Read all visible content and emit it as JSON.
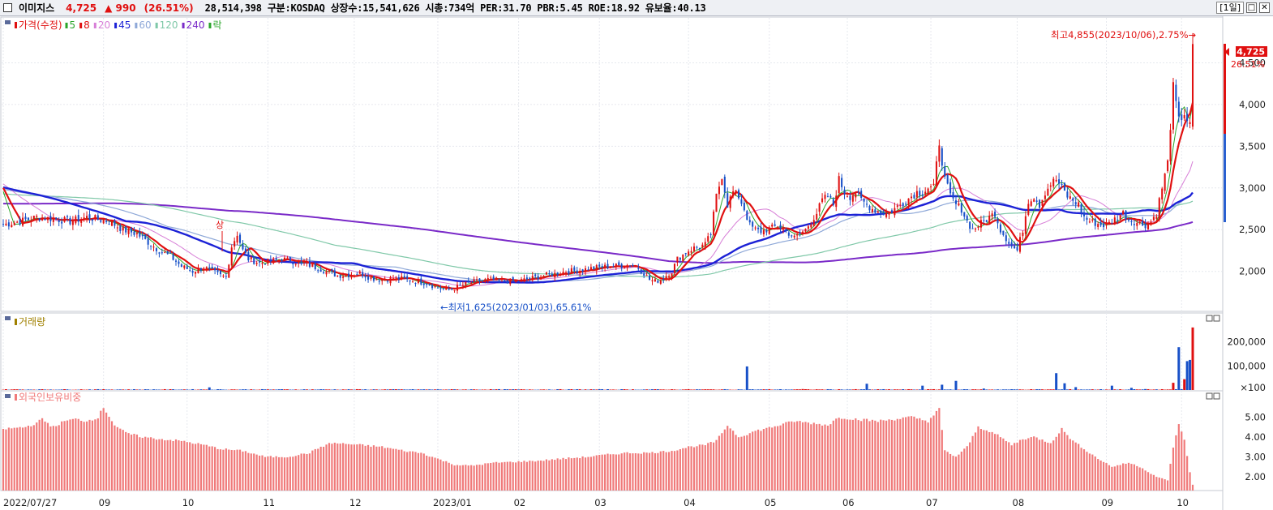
{
  "header": {
    "name": "이미지스",
    "price": "4,725",
    "change": "▲ 990",
    "change_pct": "(26.51%)",
    "info": "28,514,398  구분:KOSDAQ 상장수:15,541,626 시총:734억 PER:31.70 PBR:5.45 ROE:18.92 유보율:40.13",
    "period": "[1일]",
    "min_btn": "□",
    "close_btn": "✕"
  },
  "colors": {
    "up": "#e01010",
    "down": "#1750c8",
    "ma5": "#2aa52a",
    "ma8": "#e01010",
    "ma20": "#d77fd7",
    "ma45": "#1c22d6",
    "ma60": "#8ea8d8",
    "ma120": "#7fc8a8",
    "ma240": "#7a2ac8",
    "foreign": "#f07a7a",
    "volume_label": "#a08000"
  },
  "legend": {
    "price_label": "가격(수정)",
    "items": [
      {
        "label": "5",
        "color": "#2aa52a"
      },
      {
        "label": "8",
        "color": "#e01010"
      },
      {
        "label": "20",
        "color": "#d77fd7"
      },
      {
        "label": "45",
        "color": "#1c22d6"
      },
      {
        "label": "60",
        "color": "#8ea8d8"
      },
      {
        "label": "120",
        "color": "#7fc8a8"
      },
      {
        "label": "240",
        "color": "#7a2ac8"
      },
      {
        "label": "락",
        "color": "#2aa52a"
      }
    ],
    "volume_label": "거래량",
    "foreign_label": "외국인보유비중"
  },
  "annotations": {
    "high": "최고4,855(2023/10/06),2.75%→",
    "low": "←최저1,625(2023/01/03),65.61%",
    "upper_limit": "상",
    "last_price": "4,725",
    "last_pct": "26.51%"
  },
  "chart_data": [
    {
      "type": "candlestick",
      "name": "price",
      "x_range": [
        "2022/07/27",
        "2023/10/06"
      ],
      "y_ticks": [
        2000,
        2500,
        3000,
        3500,
        4000,
        4500
      ],
      "y_tick_labels": [
        "2,000",
        "2,500",
        "3,000",
        "3,500",
        "4,000",
        "4,500"
      ],
      "ylim": [
        1550,
        5000
      ],
      "close_path": [
        [
          0,
          2560
        ],
        [
          6,
          2600
        ],
        [
          12,
          2650
        ],
        [
          18,
          2630
        ],
        [
          24,
          2600
        ],
        [
          30,
          2650
        ],
        [
          38,
          2600
        ],
        [
          43,
          2500
        ],
        [
          48,
          2450
        ],
        [
          52,
          2350
        ],
        [
          56,
          2250
        ],
        [
          60,
          2180
        ],
        [
          64,
          2060
        ],
        [
          68,
          2000
        ],
        [
          72,
          2050
        ],
        [
          75,
          2000
        ],
        [
          78,
          1950
        ],
        [
          80,
          1930
        ],
        [
          82,
          2300
        ],
        [
          84,
          2450
        ],
        [
          86,
          2250
        ],
        [
          88,
          2150
        ],
        [
          92,
          2100
        ],
        [
          96,
          2120
        ],
        [
          100,
          2150
        ],
        [
          104,
          2120
        ],
        [
          108,
          2100
        ],
        [
          112,
          2050
        ],
        [
          116,
          2000
        ],
        [
          120,
          1950
        ],
        [
          124,
          1960
        ],
        [
          128,
          1980
        ],
        [
          132,
          1920
        ],
        [
          136,
          1900
        ],
        [
          140,
          1920
        ],
        [
          144,
          1910
        ],
        [
          148,
          1880
        ],
        [
          152,
          1860
        ],
        [
          156,
          1800
        ],
        [
          160,
          1780
        ],
        [
          162,
          1800
        ],
        [
          166,
          1850
        ],
        [
          170,
          1880
        ],
        [
          174,
          1900
        ],
        [
          178,
          1890
        ],
        [
          182,
          1880
        ],
        [
          186,
          1890
        ],
        [
          190,
          1920
        ],
        [
          194,
          1950
        ],
        [
          198,
          1970
        ],
        [
          202,
          2000
        ],
        [
          206,
          2010
        ],
        [
          210,
          2030
        ],
        [
          214,
          2050
        ],
        [
          218,
          2060
        ],
        [
          222,
          2070
        ],
        [
          226,
          2080
        ],
        [
          228,
          2040
        ],
        [
          230,
          1980
        ],
        [
          232,
          1900
        ],
        [
          234,
          1880
        ],
        [
          236,
          1900
        ],
        [
          238,
          1950
        ],
        [
          240,
          2000
        ],
        [
          242,
          2150
        ],
        [
          244,
          2200
        ],
        [
          246,
          2250
        ],
        [
          248,
          2280
        ],
        [
          250,
          2300
        ],
        [
          252,
          2320
        ],
        [
          254,
          2450
        ],
        [
          256,
          2900
        ],
        [
          258,
          3150
        ],
        [
          260,
          2800
        ],
        [
          262,
          2950
        ],
        [
          264,
          2900
        ],
        [
          266,
          2750
        ],
        [
          268,
          2550
        ],
        [
          270,
          2500
        ],
        [
          272,
          2480
        ],
        [
          274,
          2500
        ],
        [
          276,
          2520
        ],
        [
          278,
          2550
        ],
        [
          280,
          2500
        ],
        [
          282,
          2460
        ],
        [
          284,
          2400
        ],
        [
          286,
          2450
        ],
        [
          288,
          2500
        ],
        [
          290,
          2600
        ],
        [
          292,
          2700
        ],
        [
          294,
          2850
        ],
        [
          296,
          2900
        ],
        [
          298,
          2800
        ],
        [
          300,
          3100
        ],
        [
          302,
          2950
        ],
        [
          304,
          2900
        ],
        [
          306,
          2950
        ],
        [
          308,
          2850
        ],
        [
          310,
          2800
        ],
        [
          312,
          2750
        ],
        [
          314,
          2720
        ],
        [
          316,
          2700
        ],
        [
          318,
          2700
        ],
        [
          320,
          2750
        ],
        [
          322,
          2800
        ],
        [
          324,
          2850
        ],
        [
          326,
          2900
        ],
        [
          328,
          2950
        ],
        [
          330,
          2950
        ],
        [
          332,
          3000
        ],
        [
          334,
          3000
        ],
        [
          336,
          3550
        ],
        [
          338,
          3100
        ],
        [
          340,
          2900
        ],
        [
          342,
          2800
        ],
        [
          344,
          2750
        ],
        [
          346,
          2600
        ],
        [
          348,
          2500
        ],
        [
          350,
          2550
        ],
        [
          352,
          2600
        ],
        [
          354,
          2650
        ],
        [
          356,
          2700
        ],
        [
          358,
          2500
        ],
        [
          360,
          2400
        ],
        [
          362,
          2300
        ],
        [
          364,
          2250
        ],
        [
          366,
          2500
        ],
        [
          368,
          2850
        ],
        [
          370,
          2900
        ],
        [
          372,
          2800
        ],
        [
          374,
          2950
        ],
        [
          376,
          3050
        ],
        [
          378,
          3100
        ],
        [
          380,
          3000
        ],
        [
          382,
          2900
        ],
        [
          384,
          2850
        ],
        [
          386,
          2800
        ],
        [
          388,
          2650
        ],
        [
          390,
          2600
        ],
        [
          392,
          2580
        ],
        [
          394,
          2560
        ],
        [
          396,
          2550
        ],
        [
          398,
          2600
        ],
        [
          400,
          2650
        ],
        [
          402,
          2700
        ],
        [
          404,
          2620
        ],
        [
          406,
          2600
        ],
        [
          408,
          2570
        ],
        [
          410,
          2560
        ],
        [
          412,
          2600
        ],
        [
          414,
          2700
        ],
        [
          416,
          3000
        ],
        [
          418,
          3300
        ],
        [
          420,
          4200
        ],
        [
          422,
          3800
        ],
        [
          424,
          3900
        ],
        [
          426,
          3735
        ],
        [
          427,
          4725
        ]
      ],
      "last": {
        "open": 3735,
        "high": 4855,
        "low": 3700,
        "close": 4725
      },
      "high": {
        "value": 4855,
        "date": "2023/10/06"
      },
      "low": {
        "value": 1625,
        "date": "2023/01/03"
      }
    },
    {
      "type": "bar",
      "name": "volume",
      "y_tick_labels": [
        "200,000",
        "100,000",
        "×100"
      ],
      "y_ticks": [
        2000,
        1000,
        100
      ],
      "ylim": [
        0,
        3000
      ],
      "spikes": [
        [
          74,
          110
        ],
        [
          267,
          980
        ],
        [
          287,
          40
        ],
        [
          310,
          260
        ],
        [
          330,
          180
        ],
        [
          337,
          220
        ],
        [
          342,
          380
        ],
        [
          352,
          60
        ],
        [
          378,
          700
        ],
        [
          381,
          280
        ],
        [
          385,
          120
        ],
        [
          398,
          180
        ],
        [
          405,
          90
        ],
        [
          410,
          40
        ],
        [
          420,
          300
        ],
        [
          422,
          1780
        ],
        [
          424,
          450
        ],
        [
          425,
          1200
        ],
        [
          426,
          1250
        ],
        [
          427,
          2600
        ]
      ]
    },
    {
      "type": "bar",
      "name": "foreign_ownership_pct",
      "y_ticks": [
        2.0,
        3.0,
        4.0,
        5.0
      ],
      "y_tick_labels": [
        "2.00",
        "3.00",
        "4.00",
        "5.00"
      ],
      "ylim": [
        1.3,
        6.0
      ],
      "path": [
        [
          0,
          4.4
        ],
        [
          8,
          4.5
        ],
        [
          12,
          4.7
        ],
        [
          14,
          4.9
        ],
        [
          18,
          4.5
        ],
        [
          22,
          4.8
        ],
        [
          26,
          4.9
        ],
        [
          30,
          4.8
        ],
        [
          34,
          5.0
        ],
        [
          36,
          5.5
        ],
        [
          40,
          4.6
        ],
        [
          44,
          4.2
        ],
        [
          50,
          4.0
        ],
        [
          56,
          3.9
        ],
        [
          64,
          3.8
        ],
        [
          72,
          3.6
        ],
        [
          78,
          3.4
        ],
        [
          86,
          3.3
        ],
        [
          94,
          3.0
        ],
        [
          102,
          3.0
        ],
        [
          110,
          3.2
        ],
        [
          114,
          3.5
        ],
        [
          118,
          3.7
        ],
        [
          128,
          3.6
        ],
        [
          136,
          3.5
        ],
        [
          144,
          3.3
        ],
        [
          150,
          3.2
        ],
        [
          156,
          2.9
        ],
        [
          162,
          2.6
        ],
        [
          168,
          2.55
        ],
        [
          176,
          2.7
        ],
        [
          184,
          2.75
        ],
        [
          192,
          2.8
        ],
        [
          200,
          2.9
        ],
        [
          210,
          3.0
        ],
        [
          216,
          3.1
        ],
        [
          224,
          3.2
        ],
        [
          232,
          3.2
        ],
        [
          240,
          3.3
        ],
        [
          246,
          3.5
        ],
        [
          252,
          3.6
        ],
        [
          256,
          3.8
        ],
        [
          260,
          4.6
        ],
        [
          264,
          4.0
        ],
        [
          270,
          4.3
        ],
        [
          276,
          4.5
        ],
        [
          284,
          4.8
        ],
        [
          290,
          4.7
        ],
        [
          296,
          4.6
        ],
        [
          300,
          5.0
        ],
        [
          306,
          4.9
        ],
        [
          314,
          4.8
        ],
        [
          320,
          4.9
        ],
        [
          326,
          5.0
        ],
        [
          332,
          4.8
        ],
        [
          336,
          5.4
        ],
        [
          338,
          3.3
        ],
        [
          342,
          3.0
        ],
        [
          346,
          3.5
        ],
        [
          350,
          4.5
        ],
        [
          354,
          4.3
        ],
        [
          358,
          4.0
        ],
        [
          362,
          3.6
        ],
        [
          366,
          3.9
        ],
        [
          370,
          4.0
        ],
        [
          376,
          3.7
        ],
        [
          380,
          4.4
        ],
        [
          384,
          3.8
        ],
        [
          388,
          3.4
        ],
        [
          392,
          3.0
        ],
        [
          398,
          2.5
        ],
        [
          404,
          2.7
        ],
        [
          408,
          2.5
        ],
        [
          414,
          2.0
        ],
        [
          418,
          1.8
        ],
        [
          420,
          3.5
        ],
        [
          422,
          4.6
        ],
        [
          424,
          3.9
        ],
        [
          426,
          2.2
        ],
        [
          427,
          1.6
        ]
      ]
    }
  ],
  "x_axis": [
    {
      "label": "2022/07/27",
      "i": 0
    },
    {
      "label": "09",
      "i": 36
    },
    {
      "label": "10",
      "i": 66
    },
    {
      "label": "11",
      "i": 95
    },
    {
      "label": "12",
      "i": 126
    },
    {
      "label": "2023/01",
      "i": 156
    },
    {
      "label": "02",
      "i": 185
    },
    {
      "label": "03",
      "i": 214
    },
    {
      "label": "04",
      "i": 246
    },
    {
      "label": "05",
      "i": 275
    },
    {
      "label": "06",
      "i": 303
    },
    {
      "label": "07",
      "i": 333
    },
    {
      "label": "08",
      "i": 364
    },
    {
      "label": "09",
      "i": 396
    },
    {
      "label": "10",
      "i": 423
    }
  ]
}
